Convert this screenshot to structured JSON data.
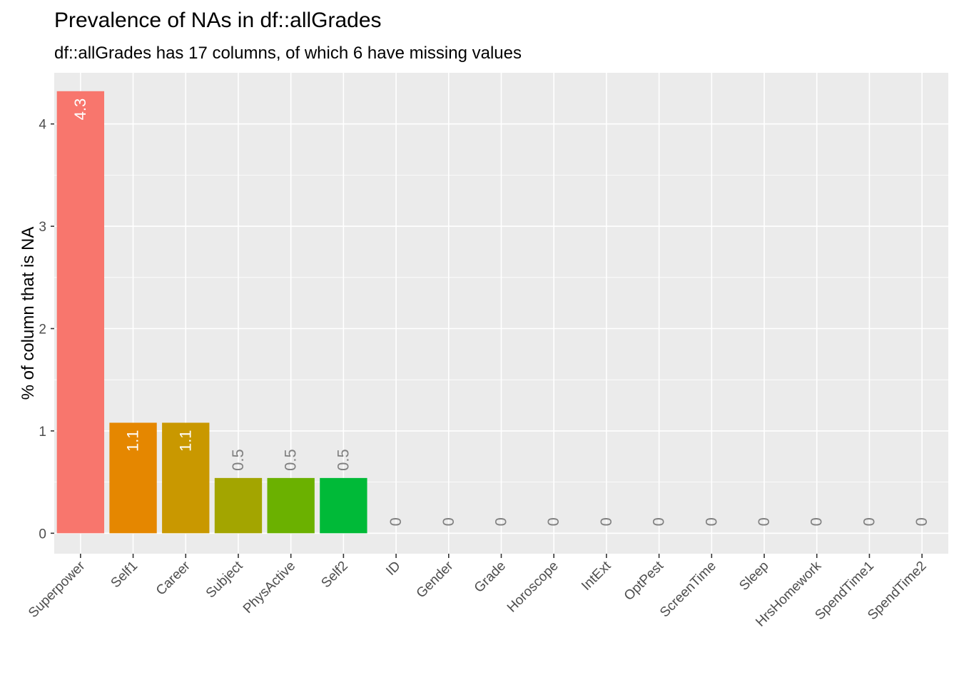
{
  "chart_data": {
    "type": "bar",
    "title": "Prevalence of NAs in df::allGrades",
    "subtitle": "df::allGrades has 17 columns, of which 6 have missing values",
    "xlabel": "",
    "ylabel": "% of column that is NA",
    "ylim": [
      -0.2,
      4.5
    ],
    "yticks": [
      0,
      1,
      2,
      3,
      4
    ],
    "grid": true,
    "legend": "none",
    "categories": [
      "Superpower",
      "Self1",
      "Career",
      "Subject",
      "PhysActive",
      "Self2",
      "ID",
      "Gender",
      "Grade",
      "Horoscope",
      "IntExt",
      "OptPest",
      "ScreenTime",
      "Sleep",
      "HrsHomework",
      "SpendTime1",
      "SpendTime2"
    ],
    "values": [
      4.32,
      1.08,
      1.08,
      0.54,
      0.54,
      0.54,
      0,
      0,
      0,
      0,
      0,
      0,
      0,
      0,
      0,
      0,
      0
    ],
    "labels": [
      "4.3",
      "1.1",
      "1.1",
      "0.5",
      "0.5",
      "0.5",
      "0",
      "0",
      "0",
      "0",
      "0",
      "0",
      "0",
      "0",
      "0",
      "0",
      "0"
    ],
    "colors": [
      "#F8766D",
      "#E58700",
      "#C99800",
      "#A3A500",
      "#6BB100",
      "#00BA38",
      "#00BF7D",
      "#00C0AF",
      "#00BCD8",
      "#00B0F6",
      "#619CFF",
      "#B983FF",
      "#E76BF3",
      "#FD61D1",
      "#FF67A4",
      "#F8766D",
      "#E58700"
    ],
    "panel_background": "#EBEBEB",
    "grid_color": "#FFFFFF",
    "label_inside_color": "#FFFFFF",
    "label_outside_color": "#808080"
  }
}
